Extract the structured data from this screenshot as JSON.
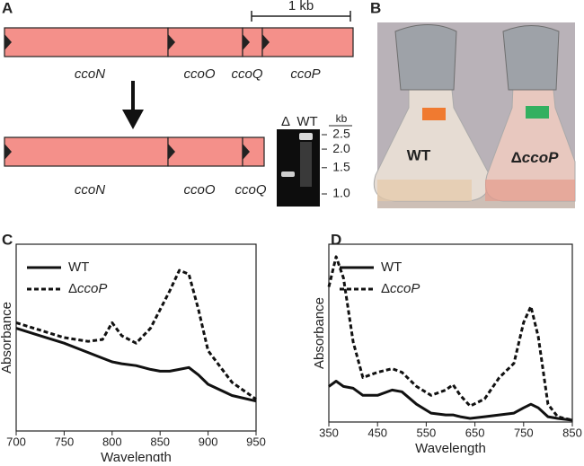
{
  "panel_labels": [
    "A",
    "B",
    "C",
    "D"
  ],
  "gene_map": {
    "scale_label": "1 kb",
    "genes_top": [
      "ccoN",
      "ccoO",
      "ccoQ",
      "ccoP"
    ],
    "genes_bottom": [
      "ccoN",
      "ccoO",
      "ccoQ"
    ]
  },
  "gel": {
    "lanes": [
      "Δ",
      "WT"
    ],
    "unit": "kb",
    "ticks": [
      2.5,
      {
        "value": 2,
        "label": "2.0"
      },
      1.5,
      {
        "value": 1,
        "label": "1.0"
      }
    ]
  },
  "photo": {
    "labels": [
      "WT",
      "ΔccoP"
    ]
  },
  "chart_data": [
    {
      "type": "line",
      "x_label": "Wavelength",
      "y_label": "Absorbance",
      "xlim": [
        700,
        950
      ],
      "xticks": [
        700,
        750,
        800,
        850,
        900,
        950
      ],
      "ylim": [
        0,
        100
      ],
      "x": [
        700,
        725,
        750,
        775,
        790,
        800,
        810,
        825,
        840,
        850,
        860,
        870,
        880,
        890,
        900,
        925,
        950
      ],
      "series": [
        {
          "name": "WT",
          "color": "#111111",
          "style": "solid",
          "values": [
            55,
            51,
            47,
            42,
            39,
            37,
            36,
            35,
            33,
            32,
            32,
            33,
            34,
            30,
            25,
            19,
            16
          ]
        },
        {
          "name": "ΔccoP",
          "color": "#111111",
          "style": "dashed",
          "values": [
            58,
            54,
            50,
            48,
            49,
            58,
            51,
            47,
            55,
            65,
            75,
            86,
            84,
            65,
            43,
            26,
            17
          ]
        }
      ]
    },
    {
      "type": "line",
      "x_label": "Wavelength",
      "y_label": "Absorbance",
      "xlim": [
        350,
        850
      ],
      "xticks": [
        350,
        450,
        550,
        650,
        750,
        850
      ],
      "ylim": [
        0,
        100
      ],
      "x": [
        350,
        365,
        380,
        400,
        420,
        450,
        480,
        500,
        530,
        560,
        590,
        605,
        620,
        640,
        670,
        700,
        730,
        750,
        765,
        780,
        800,
        820,
        850
      ],
      "series": [
        {
          "name": "WT",
          "color": "#111111",
          "style": "solid",
          "values": [
            20,
            23,
            20,
            19,
            15,
            15,
            18,
            17,
            10,
            5,
            4,
            4,
            3,
            2,
            3,
            4,
            5,
            8,
            10,
            8,
            3,
            2,
            1
          ]
        },
        {
          "name": "ΔccoP",
          "color": "#111111",
          "style": "dashed",
          "values": [
            76,
            93,
            81,
            45,
            25,
            28,
            30,
            28,
            20,
            15,
            18,
            21,
            15,
            9,
            13,
            25,
            33,
            56,
            65,
            48,
            10,
            3,
            1
          ]
        }
      ]
    }
  ]
}
